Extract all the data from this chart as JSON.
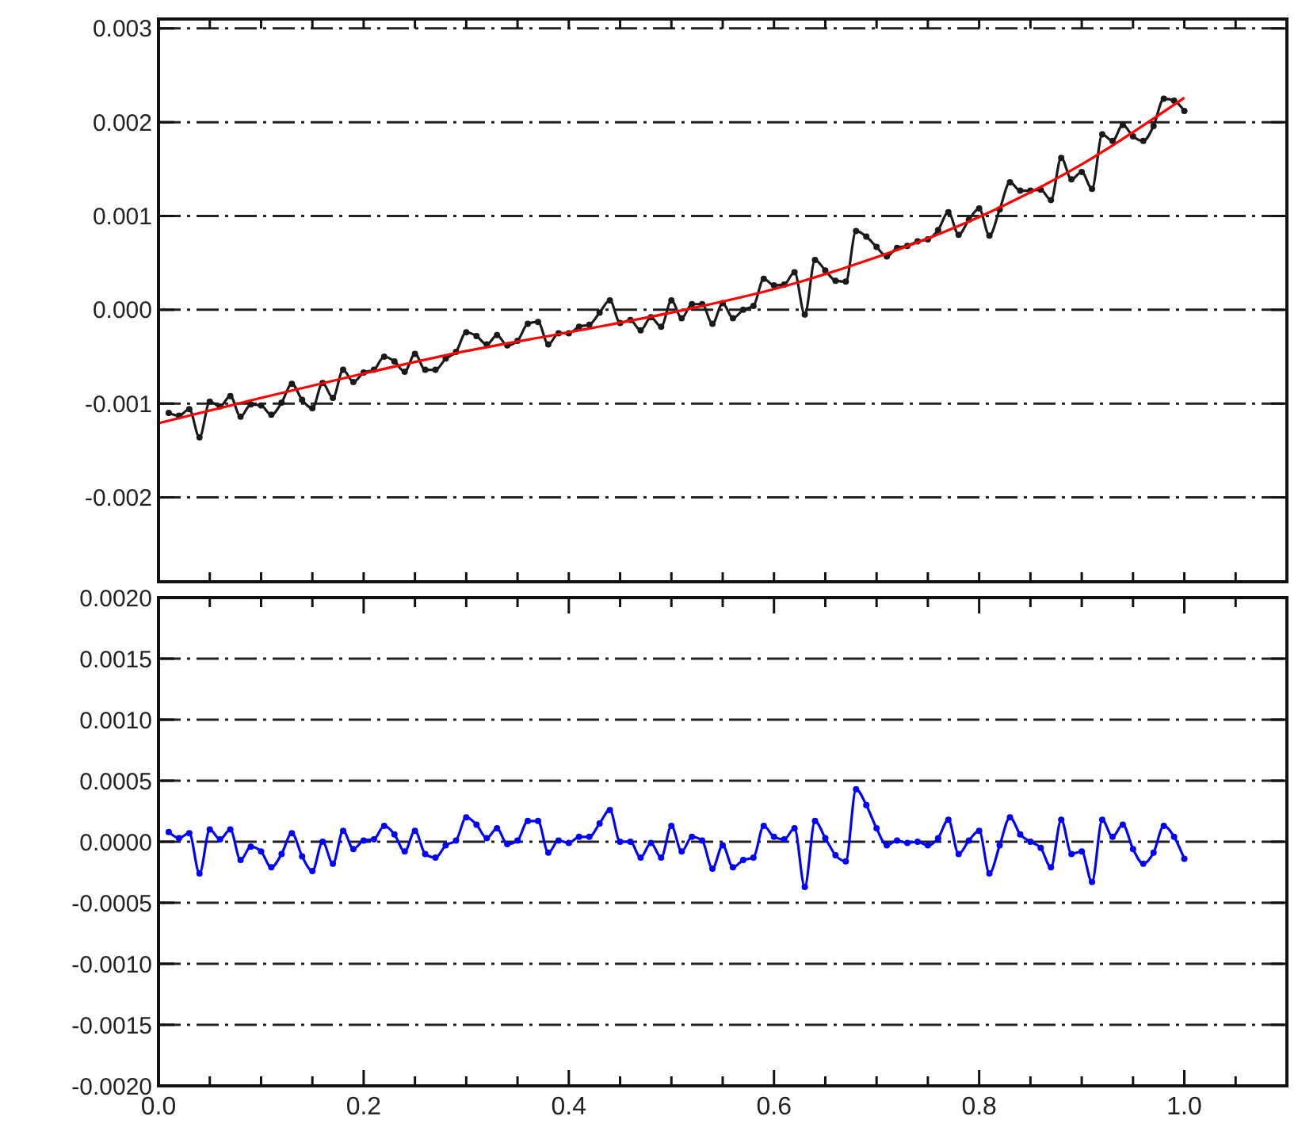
{
  "chart_data": [
    {
      "type": "line",
      "xlim": [
        0,
        1.1
      ],
      "ylim": [
        -0.0029,
        0.0031
      ],
      "xticks": [
        {
          "value": 0,
          "label": null
        },
        {
          "value": 0.05,
          "label": null
        },
        {
          "value": 0.1,
          "label": null
        },
        {
          "value": 0.15,
          "label": null
        },
        {
          "value": 0.2,
          "label": null
        },
        {
          "value": 0.25,
          "label": null
        },
        {
          "value": 0.3,
          "label": null
        },
        {
          "value": 0.35,
          "label": null
        },
        {
          "value": 0.4,
          "label": null
        },
        {
          "value": 0.45,
          "label": null
        },
        {
          "value": 0.5,
          "label": null
        },
        {
          "value": 0.55,
          "label": null
        },
        {
          "value": 0.6,
          "label": null
        },
        {
          "value": 0.65,
          "label": null
        },
        {
          "value": 0.7,
          "label": null
        },
        {
          "value": 0.75,
          "label": null
        },
        {
          "value": 0.8,
          "label": null
        },
        {
          "value": 0.85,
          "label": null
        },
        {
          "value": 0.9,
          "label": null
        },
        {
          "value": 0.95,
          "label": null
        },
        {
          "value": 1.0,
          "label": null
        },
        {
          "value": 1.05,
          "label": null
        }
      ],
      "yticks": [
        {
          "value": -0.002,
          "label": "-0.002"
        },
        {
          "value": -0.001,
          "label": "-0.001"
        },
        {
          "value": 0,
          "label": "0.000"
        },
        {
          "value": 0.001,
          "label": "0.001"
        },
        {
          "value": 0.002,
          "label": "0.002"
        },
        {
          "value": 0.003,
          "label": "0.003"
        }
      ],
      "tick_labels": "y",
      "grid": "y",
      "series": [
        {
          "color": "#1a1a1a",
          "marker": "circle",
          "line_style": "solid",
          "x": [
            0.01,
            0.02,
            0.03,
            0.04,
            0.05,
            0.06,
            0.07,
            0.08,
            0.09,
            0.1,
            0.11,
            0.12,
            0.13,
            0.14,
            0.15,
            0.16,
            0.17,
            0.18,
            0.19,
            0.2,
            0.21,
            0.22,
            0.23,
            0.24,
            0.25,
            0.26,
            0.27,
            0.28,
            0.29,
            0.3,
            0.31,
            0.32,
            0.33,
            0.34,
            0.35,
            0.36,
            0.37,
            0.38,
            0.39,
            0.4,
            0.41,
            0.42,
            0.43,
            0.44,
            0.45,
            0.46,
            0.47,
            0.48,
            0.49,
            0.5,
            0.51,
            0.52,
            0.53,
            0.54,
            0.55,
            0.56,
            0.57,
            0.58,
            0.59,
            0.6,
            0.61,
            0.62,
            0.63,
            0.64,
            0.65,
            0.66,
            0.67,
            0.68,
            0.69,
            0.7,
            0.71,
            0.72,
            0.73,
            0.74,
            0.75,
            0.76,
            0.77,
            0.78,
            0.79,
            0.8,
            0.81,
            0.82,
            0.83,
            0.84,
            0.85,
            0.86,
            0.87,
            0.88,
            0.89,
            0.9,
            0.91,
            0.92,
            0.93,
            0.94,
            0.95,
            0.96,
            0.97,
            0.98,
            0.99,
            1.0
          ],
          "values": [
            -0.0011,
            -0.00113,
            -0.00106,
            -0.00136,
            -0.00098,
            -0.00103,
            -0.00092,
            -0.00114,
            -0.00101,
            -0.00102,
            -0.00112,
            -0.00099,
            -0.00079,
            -0.00096,
            -0.00105,
            -0.00078,
            -0.00094,
            -0.00064,
            -0.00077,
            -0.00067,
            -0.00064,
            -0.0005,
            -0.00055,
            -0.00066,
            -0.00047,
            -0.00064,
            -0.00064,
            -0.00052,
            -0.00045,
            -0.00024,
            -0.00028,
            -0.00037,
            -0.00027,
            -0.00038,
            -0.00033,
            -0.00015,
            -0.00013,
            -0.00037,
            -0.00025,
            -0.00025,
            -0.00018,
            -0.00016,
            -3e-05,
            0.0001,
            -0.00014,
            -0.00011,
            -0.00022,
            -8e-05,
            -0.00018,
            0.0001,
            -9e-05,
            6e-05,
            6e-05,
            -0.00015,
            7e-05,
            -9e-05,
            0,
            4e-05,
            0.00033,
            0.00026,
            0.00027,
            0.0004,
            -5e-05,
            0.00053,
            0.00042,
            0.00031,
            0.0003,
            0.00084,
            0.00078,
            0.00067,
            0.00057,
            0.00066,
            0.00068,
            0.00073,
            0.00075,
            0.00085,
            0.00104,
            0.0008,
            0.00096,
            0.00108,
            0.00079,
            0.00107,
            0.00136,
            0.00127,
            0.00127,
            0.00128,
            0.00117,
            0.00162,
            0.00139,
            0.00147,
            0.00129,
            0.00187,
            0.0018,
            0.00197,
            0.00185,
            0.0018,
            0.00196,
            0.00225,
            0.00223,
            0.00212
          ]
        },
        {
          "color": "#ff0000",
          "marker": "none",
          "line_style": "solid",
          "x": [
            0,
            0.1,
            0.2,
            0.3,
            0.4,
            0.5,
            0.6,
            0.7,
            0.8,
            0.9,
            1.0
          ],
          "values": [
            -0.00121,
            -0.00094,
            -0.00068,
            -0.00044,
            -0.00024,
            -3e-05,
            0.00022,
            0.00056,
            0.00099,
            0.00155,
            0.00226
          ]
        }
      ]
    },
    {
      "type": "line",
      "xlim": [
        0,
        1.1
      ],
      "ylim": [
        -0.002,
        0.002
      ],
      "xticks": [
        {
          "value": 0,
          "label": "0.0"
        },
        {
          "value": 0.05,
          "label": null
        },
        {
          "value": 0.1,
          "label": null
        },
        {
          "value": 0.15,
          "label": null
        },
        0.2,
        {
          "value": 0.25,
          "label": null
        },
        {
          "value": 0.3,
          "label": null
        },
        {
          "value": 0.35,
          "label": null
        },
        0.4,
        {
          "value": 0.45,
          "label": null
        },
        {
          "value": 0.5,
          "label": null
        },
        {
          "value": 0.55,
          "label": null
        },
        0.6,
        {
          "value": 0.65,
          "label": null
        },
        {
          "value": 0.7,
          "label": null
        },
        {
          "value": 0.75,
          "label": null
        },
        0.8,
        {
          "value": 0.85,
          "label": null
        },
        {
          "value": 0.9,
          "label": null
        },
        {
          "value": 0.95,
          "label": null
        },
        {
          "value": 1.0,
          "label": "1.0"
        },
        {
          "value": 1.05,
          "label": null
        }
      ],
      "yticks": [
        {
          "value": -0.002,
          "label": "-0.0020"
        },
        {
          "value": -0.0015,
          "label": "-0.0015"
        },
        {
          "value": -0.001,
          "label": "-0.0010"
        },
        {
          "value": -0.0005,
          "label": "-0.0005"
        },
        {
          "value": 0,
          "label": "0.0000"
        },
        {
          "value": 0.0005,
          "label": "0.0005"
        },
        {
          "value": 0.001,
          "label": "0.0010"
        },
        {
          "value": 0.0015,
          "label": "0.0015"
        },
        {
          "value": 0.002,
          "label": "0.0020"
        }
      ],
      "grid": "y",
      "series": [
        {
          "color": "#0000ff",
          "marker": "circle",
          "line_style": "solid",
          "x": [
            0.01,
            0.02,
            0.03,
            0.04,
            0.05,
            0.06,
            0.07,
            0.08,
            0.09,
            0.1,
            0.11,
            0.12,
            0.13,
            0.14,
            0.15,
            0.16,
            0.17,
            0.18,
            0.19,
            0.2,
            0.21,
            0.22,
            0.23,
            0.24,
            0.25,
            0.26,
            0.27,
            0.28,
            0.29,
            0.3,
            0.31,
            0.32,
            0.33,
            0.34,
            0.35,
            0.36,
            0.37,
            0.38,
            0.39,
            0.4,
            0.41,
            0.42,
            0.43,
            0.44,
            0.45,
            0.46,
            0.47,
            0.48,
            0.49,
            0.5,
            0.51,
            0.52,
            0.53,
            0.54,
            0.55,
            0.56,
            0.57,
            0.58,
            0.59,
            0.6,
            0.61,
            0.62,
            0.63,
            0.64,
            0.65,
            0.66,
            0.67,
            0.68,
            0.69,
            0.7,
            0.71,
            0.72,
            0.73,
            0.74,
            0.75,
            0.76,
            0.77,
            0.78,
            0.79,
            0.8,
            0.81,
            0.82,
            0.83,
            0.84,
            0.85,
            0.86,
            0.87,
            0.88,
            0.89,
            0.9,
            0.91,
            0.92,
            0.93,
            0.94,
            0.95,
            0.96,
            0.97,
            0.98,
            0.99,
            1.0
          ],
          "values": [
            8e-05,
            3e-05,
            7e-05,
            -0.00026,
            0.0001,
            2e-05,
            0.0001,
            -0.00015,
            -4e-05,
            -8e-05,
            -0.00021,
            -0.0001,
            7e-05,
            -0.00012,
            -0.00024,
            0,
            -0.00018,
            9e-05,
            -6e-05,
            1e-05,
            2e-05,
            0.00013,
            6e-05,
            -8e-05,
            9e-05,
            -0.0001,
            -0.00013,
            -3e-05,
            1e-05,
            0.0002,
            0.00014,
            3e-05,
            0.00011,
            -2e-05,
            1e-05,
            0.00017,
            0.00017,
            -9e-05,
            1e-05,
            -1e-05,
            4e-05,
            4e-05,
            0.00015,
            0.00026,
            0,
            0,
            -0.00013,
            -1e-05,
            -0.00013,
            0.00013,
            -8e-05,
            4e-05,
            1e-05,
            -0.00022,
            -3e-05,
            -0.00021,
            -0.00015,
            -0.00013,
            0.00013,
            4e-05,
            2e-05,
            0.00011,
            -0.00037,
            0.00017,
            3e-05,
            -0.00011,
            -0.00016,
            0.00043,
            0.0003,
            0.00011,
            -3e-05,
            1e-05,
            -1e-05,
            0,
            -3e-05,
            3e-05,
            0.00018,
            -0.0001,
            1e-05,
            9e-05,
            -0.00026,
            -3e-05,
            0.0002,
            6e-05,
            0,
            -5e-05,
            -0.00021,
            0.00018,
            -0.0001,
            -8e-05,
            -0.00033,
            0.00018,
            4e-05,
            0.00014,
            -6e-05,
            -0.00018,
            -9e-05,
            0.00013,
            4e-05,
            -0.00014
          ]
        }
      ]
    }
  ]
}
